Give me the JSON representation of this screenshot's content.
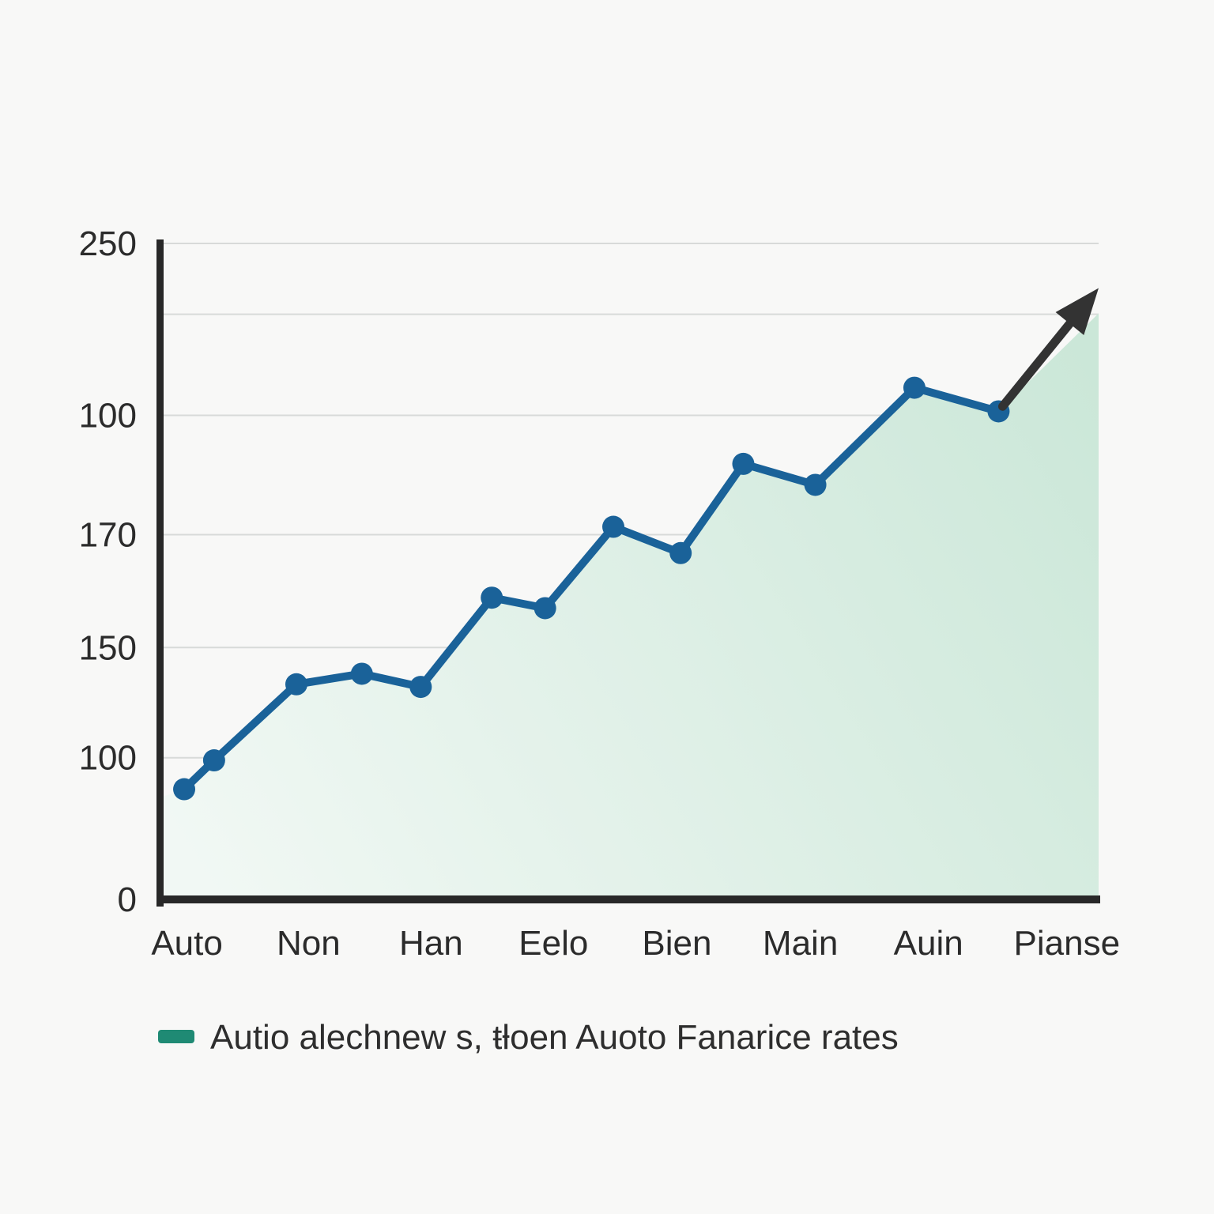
{
  "figure": {
    "background": "#f8f8f7",
    "title": "",
    "legend": {
      "label": "Autio alechnew s, ŧƚoen Auoto Fanarice rates",
      "marker_color": "#1f8a74",
      "position": "bottom-left"
    }
  },
  "colors": {
    "line": "#1a6299",
    "point": "#1a6299",
    "area_from": "#f1f8f4",
    "area_to": "#cbe7d8",
    "arrow": "#333333",
    "axis": "#282828",
    "grid": "#d8dad9",
    "tick_text": "#2b2b2b",
    "legend_text": "#2e2e2e"
  },
  "chart_data": {
    "type": "line",
    "title": "",
    "xlabel": "",
    "ylabel": "",
    "grid": true,
    "area_fill": true,
    "legend_position": "bottom-left",
    "x_axis": {
      "ticks": [
        {
          "label": "Auto",
          "x": 0.025
        },
        {
          "label": "Non",
          "x": 0.155
        },
        {
          "label": "Han",
          "x": 0.286
        },
        {
          "label": "Eelo",
          "x": 0.417
        },
        {
          "label": "Bien",
          "x": 0.549
        },
        {
          "label": "Main",
          "x": 0.681
        },
        {
          "label": "Auin",
          "x": 0.818
        },
        {
          "label": "Pianse",
          "x": 0.966
        }
      ]
    },
    "y_axis": {
      "min": 0,
      "max": 250,
      "note": "tick labels as printed are non-monotonic; pos is the true plotted height on a 0-250 linear scale",
      "ticks": [
        {
          "label": "250",
          "pos": 250
        },
        {
          "label": "",
          "pos": 223
        },
        {
          "label": "100",
          "pos": 184.5
        },
        {
          "label": "170",
          "pos": 139
        },
        {
          "label": "150",
          "pos": 96
        },
        {
          "label": "100",
          "pos": 54
        },
        {
          "label": "0",
          "pos": 0
        }
      ]
    },
    "series": [
      {
        "name": "Autio alechnew s, ŧƚoen Auoto Fanarice rates",
        "points": [
          {
            "x": 0.022,
            "v": 42
          },
          {
            "x": 0.054,
            "v": 53
          },
          {
            "x": 0.142,
            "v": 82
          },
          {
            "x": 0.212,
            "v": 86
          },
          {
            "x": 0.275,
            "v": 81
          },
          {
            "x": 0.351,
            "v": 115
          },
          {
            "x": 0.408,
            "v": 111
          },
          {
            "x": 0.481,
            "v": 142
          },
          {
            "x": 0.553,
            "v": 132
          },
          {
            "x": 0.62,
            "v": 166
          },
          {
            "x": 0.697,
            "v": 158
          },
          {
            "x": 0.803,
            "v": 195
          },
          {
            "x": 0.893,
            "v": 186
          }
        ]
      }
    ],
    "annotations": [
      {
        "type": "arrow",
        "from": {
          "x": 0.893,
          "v": 186
        },
        "to": {
          "x": 1.0,
          "v": 233
        },
        "description": "black trend arrow continuing upward past the last data point"
      }
    ]
  }
}
